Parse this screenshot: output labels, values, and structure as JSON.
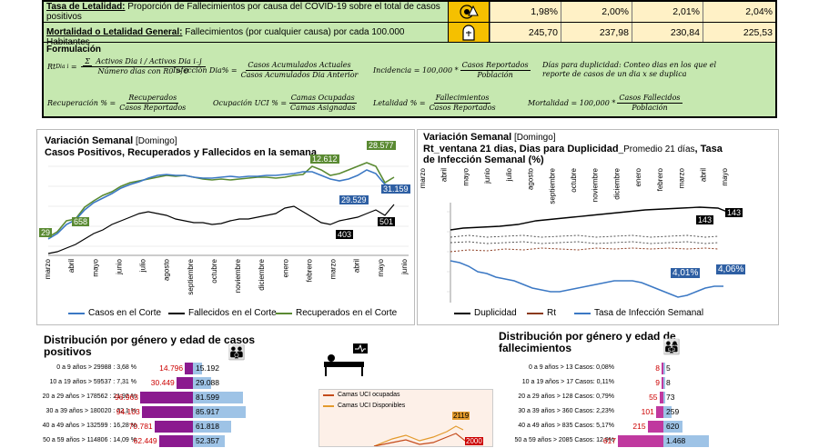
{
  "top": {
    "rows": [
      {
        "label_bold": "Tasa de Letalidad:",
        "label": " Proporción de Fallecimientos por causa del COVID-19 sobre el total de casos positivos",
        "icon": "virus-warning-icon",
        "values": [
          "1,98%",
          "2,00%",
          "2,01%",
          "2,04%"
        ]
      },
      {
        "label_bold": "Mortalidad o Letalidad General:",
        "label": " Fallecimientos (por cualquier causa) por cada 100.000 Habitantes",
        "icon": "tombstone-icon",
        "values": [
          "245,70",
          "237,98",
          "230,84",
          "225,53"
        ]
      }
    ],
    "formulas_title": "Formulación",
    "f_rt_lhs": "Rt",
    "f_rt_sub": "Dia i",
    "f_rt_sum": "Σ",
    "f_rt_num": "Activos Dia i / Activos Dia i₋j",
    "f_rt_den": "Número dias con R0 > 0",
    "f_inf_lhs": "Infección Dia% =",
    "f_inf_num": "Casos Acumulados Actuales",
    "f_inf_den": "Casos Acumulados Dia Anterior",
    "f_inc_lhs": "Incidencia = 100,000 *",
    "f_inc_num": "Casos Reportados",
    "f_inc_den": "Población",
    "f_dup": "Días para duplicidad: Conteo dias en los que el reporte de casos de un dia x se duplica",
    "f_rec_lhs": "Recuperación % =",
    "f_rec_num": "Recuperados",
    "f_rec_den": "Casos Reportados",
    "f_uci_lhs": "Ocupación UCI % =",
    "f_uci_num": "Camas Ocupadas",
    "f_uci_den": "Camas Asignadas",
    "f_let_lhs": "Letalidad % =",
    "f_let_num": "Fallecimientos",
    "f_let_den": "Casos Reportados",
    "f_mor_lhs": "Mortalidad = 100,000 *",
    "f_mor_num": "Casos Fallecidos",
    "f_mor_den": "Población"
  },
  "chart_left": {
    "title1": "Variación Semanal",
    "title1_small": " [Domingo]",
    "title2": "Casos Positivos, Recuperados y Fallecidos en la semana",
    "months": [
      "marzo",
      "abril",
      "mayo",
      "junio",
      "julio",
      "agosto",
      "septiembre",
      "octubre",
      "noviembre",
      "diciembre",
      "enero",
      "febrero",
      "marzo",
      "abril",
      "mayo",
      "junio"
    ],
    "labels": {
      "a": "29",
      "b": "658",
      "c": "12.612",
      "d": "28.577",
      "e": "29.529",
      "f": "31.159",
      "g": "403",
      "h": "501"
    },
    "legend": [
      "Casos en el  Corte",
      "Fallecidos en el Corte",
      "Recuperados en el Corte"
    ]
  },
  "chart_right": {
    "title1": "Variación Semanal",
    "title1_small": " [Domingo]",
    "title2": "Rt_ventana 21 dias, Dias para Duplicidad",
    "title2_small": "_Promedio 21 días",
    "title2b": ", Tasa",
    "title3": "de Infección Semanal (%)",
    "months": [
      "marzo",
      "abril",
      "mayo",
      "junio",
      "julio",
      "agosto",
      "septiembre",
      "octubre",
      "noviembre",
      "diciembre",
      "enero",
      "febrero",
      "marzo",
      "abril",
      "mayo"
    ],
    "labels": {
      "a": "143",
      "b": "143",
      "c": "4,01%",
      "d": "4,06%"
    },
    "legend": [
      "Duplicidad",
      "Rt",
      "Tasa de Infección Semanal"
    ]
  },
  "bottom_left": {
    "title": "Distribución por género y edad de casos positivos",
    "rows": [
      {
        "label": "0 a 9 años > 29988 : 3,68 %",
        "f": "14.796",
        "m": "15.192"
      },
      {
        "label": "10 a 19 años > 59537 : 7,31 %",
        "f": "30.449",
        "m": "29.088"
      },
      {
        "label": "20 a 29 años > 178562 : 21,92 %",
        "f": "96.963",
        "m": "81.599"
      },
      {
        "label": "30 a 39 años > 180020 : 22,1 %",
        "f": "94.103",
        "m": "85.917"
      },
      {
        "label": "40 a 49 años > 132599 : 16,28 %",
        "f": "70.781",
        "m": "61.818"
      },
      {
        "label": "50 a 59 años > 114806 : 14,09 %",
        "f": "62.449",
        "m": "52.357"
      }
    ]
  },
  "bottom_mid": {
    "legend": [
      "Camas UCI ocupadas",
      "Camas UCI Disponibles"
    ],
    "labels": {
      "a": "2119",
      "b": "2000"
    }
  },
  "bottom_right": {
    "title": "Distribución por género y edad de fallecimientos",
    "rows": [
      {
        "label": "0 a 9 años > 13 Casos: 0,08%",
        "f": "8",
        "m": "5"
      },
      {
        "label": "10 a 19 años > 17 Casos: 0,11%",
        "f": "9",
        "m": "8"
      },
      {
        "label": "20 a 29 años > 128 Casos: 0,79%",
        "f": "55",
        "m": "73"
      },
      {
        "label": "30 a 39 años > 360 Casos: 2,23%",
        "f": "101",
        "m": "259"
      },
      {
        "label": "40 a 49 años > 835 Casos: 5,17%",
        "f": "215",
        "m": "620"
      },
      {
        "label": "50 a 59 años > 2085 Casos: 12,9%",
        "f": "617",
        "m": "1.468"
      }
    ]
  },
  "chart_data": [
    {
      "type": "line",
      "title": "Variación Semanal [Domingo] Casos Positivos, Recuperados y Fallecidos en la semana",
      "categories": [
        "marzo",
        "abril",
        "mayo",
        "junio",
        "julio",
        "agosto",
        "septiembre",
        "octubre",
        "noviembre",
        "diciembre",
        "enero",
        "febrero",
        "marzo",
        "abril",
        "mayo",
        "junio"
      ],
      "series": [
        {
          "name": "Casos en el  Corte",
          "values": [
            29,
            658,
            5000,
            11000,
            18000,
            22000,
            23000,
            22000,
            21000,
            22500,
            26000,
            20000,
            15000,
            22000,
            31159,
            29529
          ]
        },
        {
          "name": "Fallecidos en el Corte",
          "values": [
            2,
            20,
            60,
            150,
            250,
            330,
            350,
            340,
            300,
            300,
            420,
            380,
            320,
            380,
            501,
            403
          ]
        },
        {
          "name": "Recuperados en el Corte",
          "values": [
            29,
            658,
            4000,
            10000,
            17000,
            20000,
            22000,
            22500,
            21000,
            21500,
            24000,
            22000,
            12612,
            20000,
            28577,
            29000
          ]
        }
      ],
      "annotations": [
        "29",
        "658",
        "12.612",
        "28.577",
        "29.529",
        "31.159",
        "403",
        "501"
      ]
    },
    {
      "type": "line",
      "title": "Variación Semanal [Domingo] Rt_ventana 21 dias, Dias para Duplicidad_Promedio 21 días, Tasa de Infección Semanal (%)",
      "categories": [
        "marzo",
        "abril",
        "mayo",
        "junio",
        "julio",
        "agosto",
        "septiembre",
        "octubre",
        "noviembre",
        "diciembre",
        "enero",
        "febrero",
        "marzo",
        "abril",
        "mayo"
      ],
      "series": [
        {
          "name": "Duplicidad",
          "values": [
            10,
            20,
            30,
            40,
            55,
            70,
            85,
            95,
            105,
            115,
            125,
            133,
            138,
            141,
            143
          ]
        },
        {
          "name": "Rt",
          "values": [
            1.3,
            1.2,
            1.1,
            1.05,
            1.02,
            1.0,
            0.98,
            0.97,
            0.98,
            1.0,
            1.02,
            0.99,
            0.97,
            1.01,
            1.0
          ]
        },
        {
          "name": "Tasa de Infección Semanal",
          "values": [
            12,
            9,
            8,
            7,
            6.5,
            6,
            5.5,
            5,
            4.8,
            4.5,
            5,
            4.2,
            3.5,
            4.01,
            4.06
          ]
        }
      ],
      "annotations": [
        "143",
        "143",
        "4,01%",
        "4,06%"
      ]
    },
    {
      "type": "bar",
      "title": "Distribución por género y edad de casos positivos",
      "categories": [
        "0 a 9 años",
        "10 a 19 años",
        "20 a 29 años",
        "30 a 39 años",
        "40 a 49 años",
        "50 a 59 años"
      ],
      "series": [
        {
          "name": "Mujeres",
          "values": [
            14796,
            30449,
            96963,
            94103,
            70781,
            62449
          ]
        },
        {
          "name": "Hombres",
          "values": [
            15192,
            29088,
            81599,
            85917,
            61818,
            52357
          ]
        }
      ]
    },
    {
      "type": "line",
      "categories": [],
      "series": [
        {
          "name": "Camas UCI ocupadas",
          "values": []
        },
        {
          "name": "Camas UCI Disponibles",
          "values": []
        }
      ],
      "annotations": [
        "2119",
        "2000"
      ]
    },
    {
      "type": "bar",
      "title": "Distribución por género y edad de fallecimientos",
      "categories": [
        "0 a 9 años",
        "10 a 19 años",
        "20 a 29 años",
        "30 a 39 años",
        "40 a 49 años",
        "50 a 59 años"
      ],
      "series": [
        {
          "name": "Mujeres",
          "values": [
            8,
            9,
            55,
            101,
            215,
            617
          ]
        },
        {
          "name": "Hombres",
          "values": [
            5,
            8,
            73,
            259,
            620,
            1468
          ]
        }
      ]
    }
  ]
}
